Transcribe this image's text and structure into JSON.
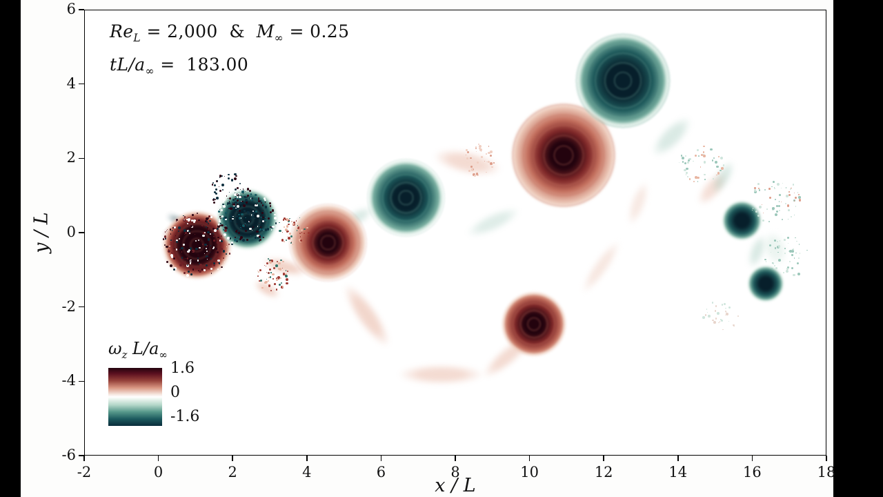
{
  "colors": {
    "letterbox": "#000000",
    "figure_bg": "#fdfdfc",
    "plot_bg": "#ffffff"
  },
  "chart_data": {
    "type": "heatmap",
    "field": "normalized z-vorticity of a 2D cylinder wake simulation",
    "annotations": {
      "line1": {
        "p0": "Re",
        "p1": "L",
        "p2": " = 2,000  &  ",
        "p3": "M",
        "p4": "∞",
        "p5": " = 0.25"
      },
      "line2": {
        "p0": "tL/a",
        "p1": "∞",
        "p2": " =  183.00"
      }
    },
    "xlabel": "x / L",
    "ylabel": "y / L",
    "xlim": [
      -2,
      18
    ],
    "ylim": [
      -6,
      6
    ],
    "xticks": [
      -2,
      0,
      2,
      4,
      6,
      8,
      10,
      12,
      14,
      16,
      18
    ],
    "yticks": [
      -6,
      -4,
      -2,
      0,
      2,
      4,
      6
    ],
    "colorbar": {
      "label": {
        "p0": "ω",
        "p1": "z",
        "p2": " L/a",
        "p3": "∞"
      },
      "ticks": [
        "1.6",
        "0",
        "-1.6"
      ],
      "range": [
        -1.6,
        1.6
      ],
      "stops": [
        [
          "#23030e",
          0
        ],
        [
          "#5c1020",
          10
        ],
        [
          "#96423a",
          22
        ],
        [
          "#d89480",
          34
        ],
        [
          "#f7e9e2",
          46
        ],
        [
          "#ffffff",
          50
        ],
        [
          "#eaf4ee",
          54
        ],
        [
          "#b3d6c8",
          64
        ],
        [
          "#55978a",
          76
        ],
        [
          "#1c5a5e",
          88
        ],
        [
          "#0a2c3b",
          100
        ]
      ]
    },
    "pos_colors": [
      "#23030e",
      "#7e2728",
      "#c4705e",
      "#eecdbd"
    ],
    "neg_colors": [
      "#071f2b",
      "#1e5a5c",
      "#74ab9d",
      "#d3e8df"
    ],
    "vortices": [
      {
        "x": 1.02,
        "y": -0.32,
        "r": 0.95,
        "core": 0.55,
        "sign": 1
      },
      {
        "x": 2.38,
        "y": 0.38,
        "r": 0.85,
        "core": 0.5,
        "sign": -1
      },
      {
        "x": 4.55,
        "y": -0.25,
        "r": 1.05,
        "core": 0.3,
        "sign": 1
      },
      {
        "x": 6.65,
        "y": 0.95,
        "r": 1.05,
        "core": 0.38,
        "sign": -1
      },
      {
        "x": 10.1,
        "y": -2.45,
        "r": 0.9,
        "core": 0.32,
        "sign": 1
      },
      {
        "x": 10.9,
        "y": 2.1,
        "r": 1.45,
        "core": 0.42,
        "sign": 1
      },
      {
        "x": 12.5,
        "y": 4.1,
        "r": 1.3,
        "core": 0.5,
        "sign": -1
      },
      {
        "x": 15.7,
        "y": 0.35,
        "r": 0.55,
        "core": 0.22,
        "sign": -1
      },
      {
        "x": 16.35,
        "y": -1.35,
        "r": 0.5,
        "core": 0.2,
        "sign": -1
      }
    ],
    "wisp_colors": {
      "salmon": "#e3a68f",
      "teal": "#96c3b4",
      "darkred": "#5c1020",
      "darkteal": "#123f4c",
      "palesalmon": "#f0d4c8",
      "paleteal": "#d8eae2"
    },
    "wisps": [
      {
        "x": 0.45,
        "y": 0.05,
        "w": 0.9,
        "h": 0.18,
        "a": -20,
        "c": "darkred",
        "o": 0.8
      },
      {
        "x": 0.5,
        "y": 0.35,
        "w": 0.8,
        "h": 0.15,
        "a": 25,
        "c": "darkteal",
        "o": 0.8
      },
      {
        "x": 2.9,
        "y": -1.5,
        "w": 1.0,
        "h": 0.4,
        "a": 30,
        "c": "salmon",
        "o": 0.5
      },
      {
        "x": 3.4,
        "y": -0.9,
        "w": 1.6,
        "h": 0.5,
        "a": 15,
        "c": "salmon",
        "o": 0.5
      },
      {
        "x": 5.3,
        "y": 0.4,
        "w": 1.4,
        "h": 0.5,
        "a": -30,
        "c": "teal",
        "o": 0.35
      },
      {
        "x": 5.6,
        "y": -2.2,
        "w": 2.6,
        "h": 0.7,
        "a": 55,
        "c": "salmon",
        "o": 0.45
      },
      {
        "x": 7.6,
        "y": -3.8,
        "w": 3.0,
        "h": 0.7,
        "a": 0,
        "c": "salmon",
        "o": 0.4
      },
      {
        "x": 9.4,
        "y": -3.3,
        "w": 2.2,
        "h": 0.6,
        "a": -40,
        "c": "salmon",
        "o": 0.4
      },
      {
        "x": 8.3,
        "y": 1.9,
        "w": 2.4,
        "h": 0.8,
        "a": 12,
        "c": "salmon",
        "o": 0.4
      },
      {
        "x": 9.0,
        "y": 0.3,
        "w": 2.0,
        "h": 0.6,
        "a": -25,
        "c": "teal",
        "o": 0.3
      },
      {
        "x": 11.9,
        "y": 3.1,
        "w": 1.8,
        "h": 0.6,
        "a": -55,
        "c": "salmon",
        "o": 0.45
      },
      {
        "x": 11.9,
        "y": -0.9,
        "w": 2.2,
        "h": 0.5,
        "a": -55,
        "c": "palesalmon",
        "o": 0.55
      },
      {
        "x": 12.9,
        "y": 0.8,
        "w": 1.6,
        "h": 0.5,
        "a": -70,
        "c": "palesalmon",
        "o": 0.5
      },
      {
        "x": 13.8,
        "y": 2.6,
        "w": 1.8,
        "h": 0.7,
        "a": -45,
        "c": "teal",
        "o": 0.35
      },
      {
        "x": 14.9,
        "y": 1.2,
        "w": 1.4,
        "h": 0.6,
        "a": -50,
        "c": "salmon",
        "o": 0.35
      },
      {
        "x": 15.2,
        "y": 1.5,
        "w": 1.3,
        "h": 0.5,
        "a": -60,
        "c": "teal",
        "o": 0.35
      },
      {
        "x": 16.1,
        "y": -0.5,
        "w": 1.2,
        "h": 0.5,
        "a": -70,
        "c": "teal",
        "o": 0.35
      },
      {
        "x": 16.6,
        "y": -0.4,
        "w": 1.2,
        "h": 0.8,
        "a": 70,
        "c": "paleteal",
        "o": 0.5
      }
    ],
    "speckle_clusters": [
      {
        "x": 1.0,
        "y": -0.3,
        "r": 0.95,
        "n": 220,
        "colors": [
          "#2d0513",
          "#6e1f26",
          "#0c2e3d",
          "#ffffff"
        ]
      },
      {
        "x": 2.35,
        "y": 0.45,
        "r": 0.8,
        "n": 180,
        "colors": [
          "#0c2e3d",
          "#155a63",
          "#2d0513",
          "#ffffff"
        ]
      },
      {
        "x": 1.9,
        "y": 1.15,
        "r": 0.55,
        "n": 100,
        "colors": [
          "#2d0513",
          "#0c2e3d",
          "#ffffff"
        ]
      },
      {
        "x": 3.05,
        "y": -1.1,
        "r": 0.5,
        "n": 60,
        "colors": [
          "#a03a33",
          "#e8b5a1",
          "#2e7268"
        ]
      },
      {
        "x": 3.6,
        "y": 0.1,
        "r": 0.45,
        "n": 50,
        "colors": [
          "#a03a33",
          "#2e7268",
          "#e8b5a1"
        ]
      },
      {
        "x": 8.6,
        "y": 2.0,
        "r": 0.5,
        "n": 35,
        "colors": [
          "#dd9d8a",
          "#f0cfc2"
        ]
      },
      {
        "x": 14.6,
        "y": 1.9,
        "r": 0.6,
        "n": 45,
        "colors": [
          "#cfe5dc",
          "#e8b5a1",
          "#9cc7ba"
        ]
      },
      {
        "x": 16.6,
        "y": 0.9,
        "r": 0.7,
        "n": 60,
        "colors": [
          "#9cc7ba",
          "#dd9d8a",
          "#cfe5dc"
        ]
      },
      {
        "x": 16.9,
        "y": -0.6,
        "r": 0.6,
        "n": 45,
        "colors": [
          "#9cc7ba",
          "#cfe5dc"
        ]
      },
      {
        "x": 15.1,
        "y": -2.2,
        "r": 0.5,
        "n": 30,
        "colors": [
          "#e8d5cc",
          "#cfe5dc"
        ]
      }
    ]
  }
}
